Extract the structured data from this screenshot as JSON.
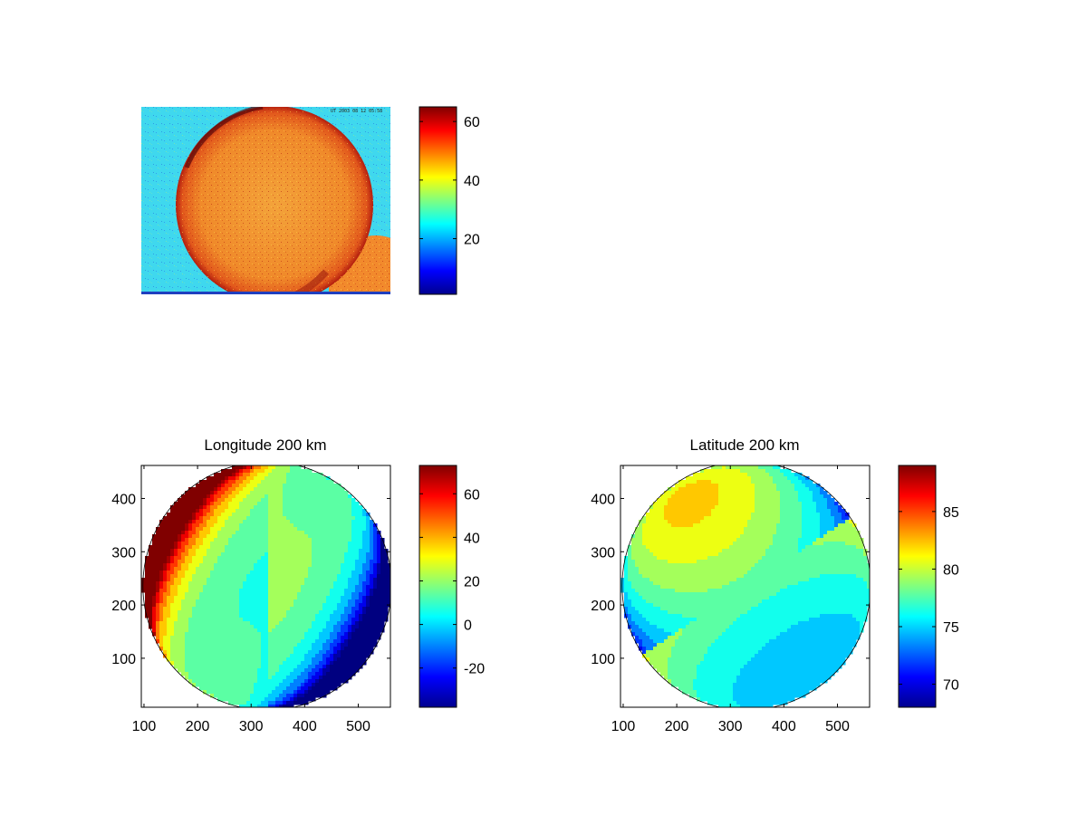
{
  "colormap": "jet",
  "chart_data": [
    {
      "type": "heatmap",
      "title": "",
      "image_label": "UT 2003 08 12 05:58",
      "colorbar": {
        "range": [
          1,
          65
        ],
        "ticks": [
          20,
          40,
          60
        ],
        "tick_labels": [
          "20",
          "40",
          "60"
        ]
      }
    },
    {
      "type": "heatmap",
      "title": "Longitude 200 km",
      "xlim": [
        95,
        560
      ],
      "ylim": [
        8,
        462
      ],
      "xticks": [
        100,
        200,
        300,
        400,
        500
      ],
      "xtick_labels": [
        "100",
        "200",
        "300",
        "400",
        "500"
      ],
      "yticks": [
        100,
        200,
        300,
        400
      ],
      "ytick_labels": [
        "100",
        "200",
        "300",
        "400"
      ],
      "disk": {
        "center": [
          330,
          236
        ],
        "radius": 232
      },
      "colorbar": {
        "range": [
          -38,
          73
        ],
        "ticks": [
          -20,
          0,
          20,
          40,
          60
        ],
        "tick_labels": [
          "-20",
          "0",
          "20",
          "40",
          "60"
        ]
      }
    },
    {
      "type": "heatmap",
      "title": "Latitude 200 km",
      "xlim": [
        95,
        560
      ],
      "ylim": [
        8,
        462
      ],
      "xticks": [
        100,
        200,
        300,
        400,
        500
      ],
      "xtick_labels": [
        "100",
        "200",
        "300",
        "400",
        "500"
      ],
      "yticks": [
        100,
        200,
        300,
        400
      ],
      "ytick_labels": [
        "100",
        "200",
        "300",
        "400"
      ],
      "disk": {
        "center": [
          330,
          236
        ],
        "radius": 232
      },
      "colorbar": {
        "range": [
          68,
          89
        ],
        "ticks": [
          70,
          75,
          80,
          85
        ],
        "tick_labels": [
          "70",
          "75",
          "80",
          "85"
        ]
      }
    }
  ]
}
